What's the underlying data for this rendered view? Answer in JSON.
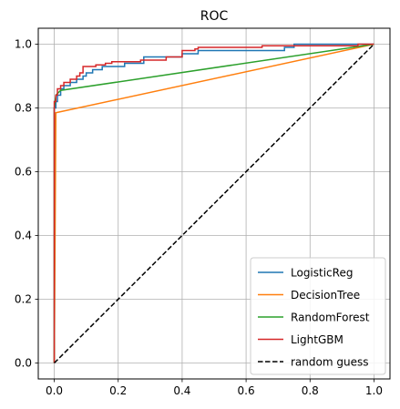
{
  "chart_data": {
    "type": "line",
    "title": "ROC",
    "xlabel": "",
    "ylabel": "",
    "xlim": [
      -0.05,
      1.05
    ],
    "ylim": [
      -0.05,
      1.05
    ],
    "xticks": [
      "0.0",
      "0.2",
      "0.4",
      "0.6",
      "0.8",
      "1.0"
    ],
    "yticks": [
      "0.0",
      "0.2",
      "0.4",
      "0.6",
      "0.8",
      "1.0"
    ],
    "grid": true,
    "legend_position": "bottom-right",
    "series": [
      {
        "name": "LogisticReg",
        "color": "#1f77b4",
        "style": "step",
        "points": [
          [
            0,
            0
          ],
          [
            0,
            0.8
          ],
          [
            0.005,
            0.8
          ],
          [
            0.005,
            0.82
          ],
          [
            0.01,
            0.82
          ],
          [
            0.01,
            0.84
          ],
          [
            0.02,
            0.84
          ],
          [
            0.02,
            0.86
          ],
          [
            0.03,
            0.86
          ],
          [
            0.03,
            0.87
          ],
          [
            0.05,
            0.87
          ],
          [
            0.05,
            0.88
          ],
          [
            0.07,
            0.88
          ],
          [
            0.07,
            0.89
          ],
          [
            0.09,
            0.89
          ],
          [
            0.09,
            0.9
          ],
          [
            0.1,
            0.9
          ],
          [
            0.1,
            0.91
          ],
          [
            0.12,
            0.91
          ],
          [
            0.12,
            0.92
          ],
          [
            0.15,
            0.92
          ],
          [
            0.15,
            0.93
          ],
          [
            0.22,
            0.93
          ],
          [
            0.22,
            0.94
          ],
          [
            0.28,
            0.94
          ],
          [
            0.28,
            0.96
          ],
          [
            0.4,
            0.96
          ],
          [
            0.4,
            0.97
          ],
          [
            0.45,
            0.97
          ],
          [
            0.45,
            0.98
          ],
          [
            0.55,
            0.98
          ],
          [
            0.72,
            0.98
          ],
          [
            0.72,
            0.99
          ],
          [
            0.75,
            0.99
          ],
          [
            0.75,
            1.0
          ],
          [
            1.0,
            1.0
          ]
        ]
      },
      {
        "name": "DecisionTree",
        "color": "#ff7f0e",
        "style": "line",
        "points": [
          [
            0,
            0
          ],
          [
            0.005,
            0.785
          ],
          [
            1.0,
            1.0
          ]
        ]
      },
      {
        "name": "RandomForest",
        "color": "#2ca02c",
        "style": "line",
        "points": [
          [
            0,
            0
          ],
          [
            0.0,
            0.8
          ],
          [
            0.005,
            0.84
          ],
          [
            0.02,
            0.855
          ],
          [
            1.0,
            1.0
          ]
        ]
      },
      {
        "name": "LightGBM",
        "color": "#d62728",
        "style": "step",
        "points": [
          [
            0,
            0
          ],
          [
            0,
            0.82
          ],
          [
            0.005,
            0.82
          ],
          [
            0.005,
            0.84
          ],
          [
            0.01,
            0.84
          ],
          [
            0.01,
            0.86
          ],
          [
            0.02,
            0.86
          ],
          [
            0.02,
            0.87
          ],
          [
            0.03,
            0.87
          ],
          [
            0.03,
            0.88
          ],
          [
            0.05,
            0.88
          ],
          [
            0.05,
            0.89
          ],
          [
            0.07,
            0.89
          ],
          [
            0.07,
            0.9
          ],
          [
            0.08,
            0.9
          ],
          [
            0.08,
            0.91
          ],
          [
            0.09,
            0.91
          ],
          [
            0.09,
            0.93
          ],
          [
            0.13,
            0.93
          ],
          [
            0.13,
            0.935
          ],
          [
            0.16,
            0.935
          ],
          [
            0.16,
            0.94
          ],
          [
            0.18,
            0.94
          ],
          [
            0.18,
            0.945
          ],
          [
            0.27,
            0.945
          ],
          [
            0.27,
            0.95
          ],
          [
            0.35,
            0.95
          ],
          [
            0.35,
            0.96
          ],
          [
            0.4,
            0.96
          ],
          [
            0.4,
            0.98
          ],
          [
            0.44,
            0.98
          ],
          [
            0.44,
            0.985
          ],
          [
            0.45,
            0.985
          ],
          [
            0.45,
            0.99
          ],
          [
            0.65,
            0.99
          ],
          [
            0.65,
            0.995
          ],
          [
            0.95,
            0.995
          ],
          [
            0.95,
            1.0
          ],
          [
            1.0,
            1.0
          ]
        ]
      },
      {
        "name": "random guess",
        "color": "#000000",
        "style": "dashed",
        "points": [
          [
            0,
            0
          ],
          [
            1,
            1
          ]
        ]
      }
    ]
  }
}
